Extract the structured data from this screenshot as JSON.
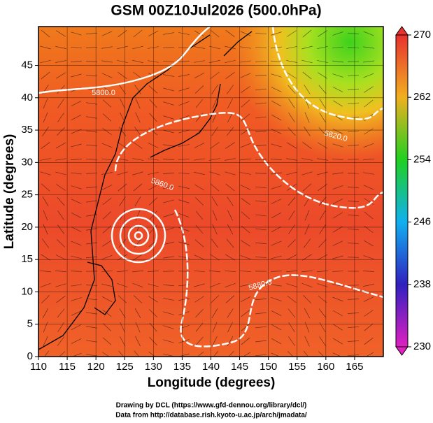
{
  "title": "GSM 00Z10Jul2026 (500.0hPa)",
  "x_axis": {
    "label": "Longitude (degrees)",
    "lim": [
      110,
      170
    ],
    "ticks": [
      110,
      115,
      120,
      125,
      130,
      135,
      140,
      145,
      150,
      155,
      160,
      165
    ]
  },
  "y_axis": {
    "label": "Latitude  (degrees)",
    "lim": [
      0,
      51
    ],
    "ticks": [
      0,
      5,
      10,
      15,
      20,
      25,
      30,
      35,
      40,
      45
    ]
  },
  "colorbar": {
    "lim": [
      230,
      270
    ],
    "ticks": [
      230,
      238,
      246,
      254,
      262,
      270
    ]
  },
  "contours": [
    {
      "value": 5800,
      "label": "5800.0"
    },
    {
      "value": 5820,
      "label": "5820.0"
    },
    {
      "value": 5860,
      "label": "5860.0"
    },
    {
      "value": 5880,
      "label": "5880.0"
    }
  ],
  "credits": [
    "Drawing by DCL (https://www.gfd-dennou.org/library/dcl/)",
    "Data from http://database.rish.kyoto-u.ac.jp/arch/jmadata/"
  ]
}
